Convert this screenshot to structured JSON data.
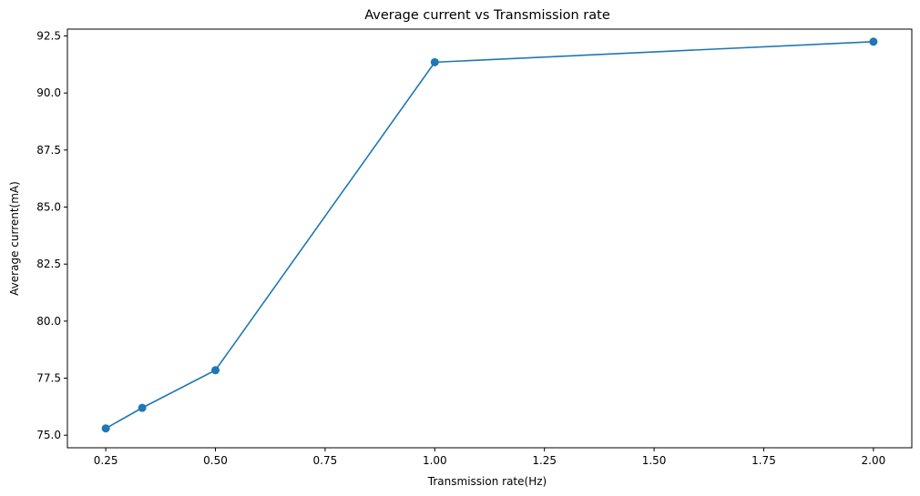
{
  "chart_data": {
    "type": "line",
    "title": "Average current vs Transmission rate",
    "xlabel": "Transmission rate(Hz)",
    "ylabel": "Average current(mA)",
    "xlim": [
      0.1625,
      2.0875
    ],
    "ylim": [
      74.45,
      92.8
    ],
    "xticks": [
      0.25,
      0.5,
      0.75,
      1.0,
      1.25,
      1.5,
      1.75,
      2.0
    ],
    "xtick_labels": [
      "0.25",
      "0.50",
      "0.75",
      "1.00",
      "1.25",
      "1.50",
      "1.75",
      "2.00"
    ],
    "yticks": [
      75.0,
      77.5,
      80.0,
      82.5,
      85.0,
      87.5,
      90.0,
      92.5
    ],
    "ytick_labels": [
      "75.0",
      "77.5",
      "80.0",
      "82.5",
      "85.0",
      "87.5",
      "90.0",
      "92.5"
    ],
    "grid": false,
    "series": [
      {
        "color": "#1f77b4",
        "marker": "circle",
        "x": [
          0.25,
          0.333,
          0.5,
          1.0,
          2.0
        ],
        "y": [
          75.3,
          76.2,
          77.85,
          91.35,
          92.25
        ]
      }
    ]
  }
}
